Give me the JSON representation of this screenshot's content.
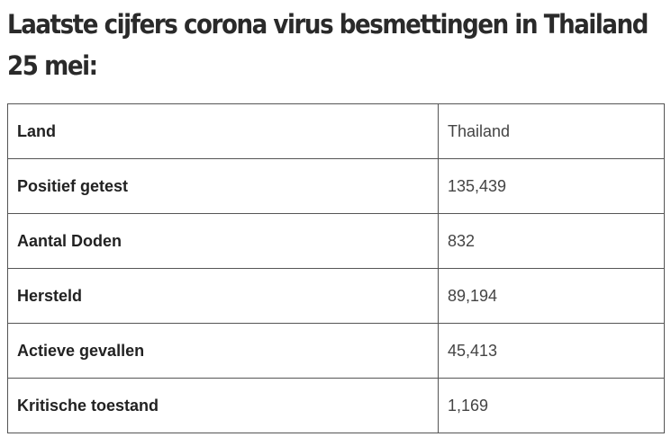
{
  "header": {
    "title": "Laatste cijfers corona virus besmettingen in Thailand",
    "subtitle": "25 mei:"
  },
  "table": {
    "rows": [
      [
        "Land",
        "Thailand"
      ],
      [
        "Positief getest",
        "135,439"
      ],
      [
        "Aantal Doden",
        "832"
      ],
      [
        "Hersteld",
        "89,194"
      ],
      [
        "Actieve gevallen",
        "45,413"
      ],
      [
        "Kritische toestand",
        "1,169"
      ]
    ]
  }
}
